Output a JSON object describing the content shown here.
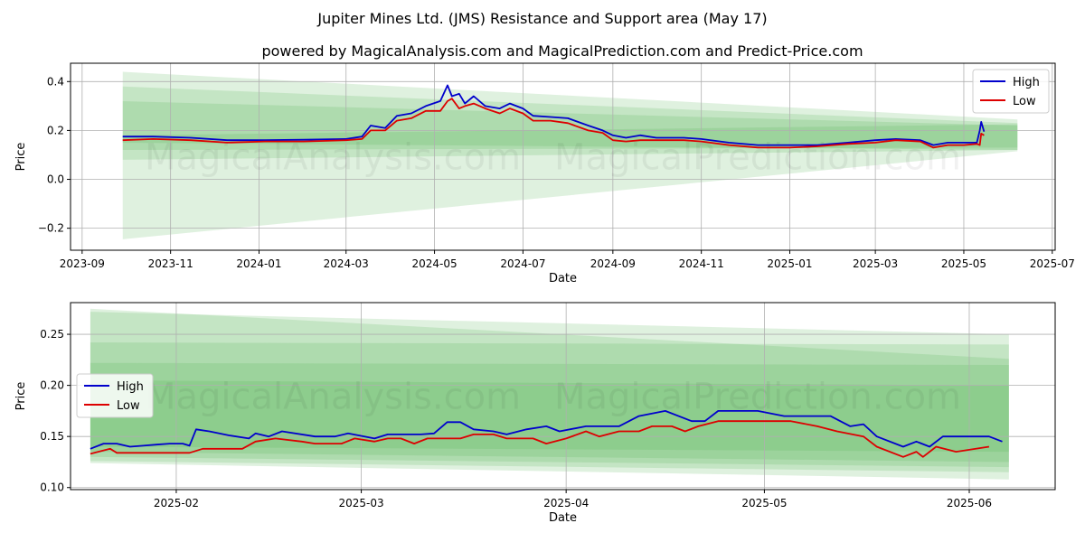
{
  "title": "Jupiter Mines Ltd. (JMS) Resistance and Support area (May 17)",
  "subtitle": "powered by MagicalAnalysis.com and MagicalPrediction.com and Predict-Price.com",
  "watermarks": [
    "MagicalAnalysis.com",
    "MagicalPrediction.com"
  ],
  "colors": {
    "high": "#0000cc",
    "low": "#dd0000",
    "band": "#4caf50",
    "grid": "#b0b0b0"
  },
  "chart_data": [
    {
      "type": "line",
      "xlabel": "Date",
      "ylabel": "Price",
      "xlim": [
        "2023-08-24",
        "2025-07-03"
      ],
      "ylim": [
        -0.29,
        0.475
      ],
      "grid": true,
      "legend": "top-right",
      "x_ticks": [
        "2023-09",
        "2023-11",
        "2024-01",
        "2024-03",
        "2024-05",
        "2024-07",
        "2024-09",
        "2024-11",
        "2025-01",
        "2025-03",
        "2025-05",
        "2025-07"
      ],
      "y_ticks": [
        "0.4",
        "0.2",
        "0.0",
        "−0.2"
      ],
      "y_tick_values": [
        0.4,
        0.2,
        0.0,
        -0.2
      ],
      "bands": [
        {
          "x0": "2023-09-29",
          "x1": "2025-06-07",
          "top": [
            0.44,
            0.245
          ],
          "bottom": [
            -0.245,
            0.115
          ]
        },
        {
          "x0": "2023-09-29",
          "x1": "2025-06-07",
          "top": [
            0.38,
            0.23
          ],
          "bottom": [
            0.08,
            0.12
          ]
        },
        {
          "x0": "2023-09-29",
          "x1": "2025-06-07",
          "top": [
            0.32,
            0.22
          ],
          "bottom": [
            0.12,
            0.13
          ]
        },
        {
          "x0": "2023-09-29",
          "x1": "2025-06-07",
          "top": [
            0.18,
            0.225
          ],
          "bottom": [
            0.15,
            0.12
          ]
        }
      ],
      "series": [
        {
          "name": "High",
          "color": "#0000cc",
          "points": [
            [
              "2023-09-29",
              0.175
            ],
            [
              "2023-10-20",
              0.175
            ],
            [
              "2023-11-15",
              0.17
            ],
            [
              "2023-12-10",
              0.16
            ],
            [
              "2024-01-05",
              0.16
            ],
            [
              "2024-02-01",
              0.162
            ],
            [
              "2024-03-01",
              0.165
            ],
            [
              "2024-03-12",
              0.175
            ],
            [
              "2024-03-18",
              0.22
            ],
            [
              "2024-03-28",
              0.21
            ],
            [
              "2024-04-05",
              0.26
            ],
            [
              "2024-04-15",
              0.27
            ],
            [
              "2024-04-25",
              0.3
            ],
            [
              "2024-05-05",
              0.32
            ],
            [
              "2024-05-10",
              0.385
            ],
            [
              "2024-05-13",
              0.34
            ],
            [
              "2024-05-18",
              0.35
            ],
            [
              "2024-05-22",
              0.31
            ],
            [
              "2024-05-28",
              0.34
            ],
            [
              "2024-06-05",
              0.3
            ],
            [
              "2024-06-15",
              0.29
            ],
            [
              "2024-06-22",
              0.31
            ],
            [
              "2024-07-01",
              0.29
            ],
            [
              "2024-07-08",
              0.26
            ],
            [
              "2024-07-20",
              0.255
            ],
            [
              "2024-08-01",
              0.25
            ],
            [
              "2024-08-15",
              0.22
            ],
            [
              "2024-08-25",
              0.2
            ],
            [
              "2024-09-01",
              0.18
            ],
            [
              "2024-09-10",
              0.17
            ],
            [
              "2024-09-20",
              0.18
            ],
            [
              "2024-10-01",
              0.17
            ],
            [
              "2024-10-20",
              0.17
            ],
            [
              "2024-11-01",
              0.165
            ],
            [
              "2024-11-20",
              0.15
            ],
            [
              "2024-12-10",
              0.14
            ],
            [
              "2025-01-01",
              0.14
            ],
            [
              "2025-01-20",
              0.14
            ],
            [
              "2025-02-10",
              0.15
            ],
            [
              "2025-03-01",
              0.16
            ],
            [
              "2025-03-15",
              0.165
            ],
            [
              "2025-04-01",
              0.16
            ],
            [
              "2025-04-10",
              0.14
            ],
            [
              "2025-04-20",
              0.15
            ],
            [
              "2025-05-01",
              0.15
            ],
            [
              "2025-05-10",
              0.15
            ],
            [
              "2025-05-12",
              0.2
            ],
            [
              "2025-05-13",
              0.235
            ],
            [
              "2025-05-15",
              0.195
            ]
          ]
        },
        {
          "name": "Low",
          "color": "#dd0000",
          "points": [
            [
              "2023-09-29",
              0.16
            ],
            [
              "2023-10-20",
              0.165
            ],
            [
              "2023-11-15",
              0.16
            ],
            [
              "2023-12-10",
              0.15
            ],
            [
              "2024-01-05",
              0.155
            ],
            [
              "2024-02-01",
              0.155
            ],
            [
              "2024-03-01",
              0.16
            ],
            [
              "2024-03-12",
              0.165
            ],
            [
              "2024-03-18",
              0.2
            ],
            [
              "2024-03-28",
              0.2
            ],
            [
              "2024-04-05",
              0.24
            ],
            [
              "2024-04-15",
              0.25
            ],
            [
              "2024-04-25",
              0.28
            ],
            [
              "2024-05-05",
              0.28
            ],
            [
              "2024-05-10",
              0.32
            ],
            [
              "2024-05-13",
              0.33
            ],
            [
              "2024-05-18",
              0.29
            ],
            [
              "2024-05-22",
              0.3
            ],
            [
              "2024-05-28",
              0.31
            ],
            [
              "2024-06-05",
              0.29
            ],
            [
              "2024-06-15",
              0.27
            ],
            [
              "2024-06-22",
              0.29
            ],
            [
              "2024-07-01",
              0.27
            ],
            [
              "2024-07-08",
              0.24
            ],
            [
              "2024-07-20",
              0.24
            ],
            [
              "2024-08-01",
              0.23
            ],
            [
              "2024-08-15",
              0.2
            ],
            [
              "2024-08-25",
              0.19
            ],
            [
              "2024-09-01",
              0.16
            ],
            [
              "2024-09-10",
              0.155
            ],
            [
              "2024-09-20",
              0.16
            ],
            [
              "2024-10-01",
              0.16
            ],
            [
              "2024-10-20",
              0.16
            ],
            [
              "2024-11-01",
              0.155
            ],
            [
              "2024-11-20",
              0.14
            ],
            [
              "2024-12-10",
              0.13
            ],
            [
              "2025-01-01",
              0.13
            ],
            [
              "2025-01-20",
              0.135
            ],
            [
              "2025-02-10",
              0.145
            ],
            [
              "2025-03-01",
              0.15
            ],
            [
              "2025-03-15",
              0.16
            ],
            [
              "2025-04-01",
              0.155
            ],
            [
              "2025-04-10",
              0.13
            ],
            [
              "2025-04-20",
              0.14
            ],
            [
              "2025-05-01",
              0.14
            ],
            [
              "2025-05-10",
              0.145
            ],
            [
              "2025-05-12",
              0.14
            ],
            [
              "2025-05-13",
              0.187
            ],
            [
              "2025-05-15",
              0.18
            ]
          ]
        }
      ]
    },
    {
      "type": "line",
      "xlabel": "Date",
      "ylabel": "Price",
      "xlim": [
        "2025-01-16",
        "2025-06-14"
      ],
      "ylim": [
        0.098,
        0.281
      ],
      "grid": true,
      "legend": "center-left",
      "x_ticks": [
        "2025-02",
        "2025-03",
        "2025-04",
        "2025-05",
        "2025-06"
      ],
      "y_ticks": [
        "0.10",
        "0.15",
        "0.20",
        "0.25"
      ],
      "y_tick_values": [
        0.1,
        0.15,
        0.2,
        0.25
      ],
      "bands": [
        {
          "x0": "2025-01-19",
          "x1": "2025-06-07",
          "top": [
            0.275,
            0.226
          ],
          "bottom": [
            0.124,
            0.108
          ]
        },
        {
          "x0": "2025-01-19",
          "x1": "2025-06-07",
          "top": [
            0.272,
            0.25
          ],
          "bottom": [
            0.126,
            0.115
          ]
        },
        {
          "x0": "2025-01-19",
          "x1": "2025-06-07",
          "top": [
            0.242,
            0.24
          ],
          "bottom": [
            0.13,
            0.12
          ]
        },
        {
          "x0": "2025-01-19",
          "x1": "2025-06-07",
          "top": [
            0.222,
            0.22
          ],
          "bottom": [
            0.135,
            0.125
          ]
        },
        {
          "x0": "2025-01-19",
          "x1": "2025-06-07",
          "top": [
            0.205,
            0.2
          ],
          "bottom": [
            0.14,
            0.135
          ]
        }
      ],
      "series": [
        {
          "name": "High",
          "color": "#0000cc",
          "points": [
            [
              "2025-01-19",
              0.138
            ],
            [
              "2025-01-21",
              0.143
            ],
            [
              "2025-01-23",
              0.143
            ],
            [
              "2025-01-25",
              0.14
            ],
            [
              "2025-01-27",
              0.141
            ],
            [
              "2025-01-29",
              0.142
            ],
            [
              "2025-01-31",
              0.143
            ],
            [
              "2025-02-02",
              0.143
            ],
            [
              "2025-02-03",
              0.141
            ],
            [
              "2025-02-04",
              0.157
            ],
            [
              "2025-02-06",
              0.155
            ],
            [
              "2025-02-09",
              0.151
            ],
            [
              "2025-02-12",
              0.148
            ],
            [
              "2025-02-13",
              0.153
            ],
            [
              "2025-02-15",
              0.15
            ],
            [
              "2025-02-17",
              0.155
            ],
            [
              "2025-02-22",
              0.15
            ],
            [
              "2025-02-25",
              0.15
            ],
            [
              "2025-02-27",
              0.153
            ],
            [
              "2025-03-03",
              0.148
            ],
            [
              "2025-03-05",
              0.152
            ],
            [
              "2025-03-10",
              0.152
            ],
            [
              "2025-03-12",
              0.153
            ],
            [
              "2025-03-14",
              0.164
            ],
            [
              "2025-03-16",
              0.164
            ],
            [
              "2025-03-18",
              0.157
            ],
            [
              "2025-03-21",
              0.155
            ],
            [
              "2025-03-23",
              0.152
            ],
            [
              "2025-03-26",
              0.157
            ],
            [
              "2025-03-29",
              0.16
            ],
            [
              "2025-03-31",
              0.155
            ],
            [
              "2025-04-04",
              0.16
            ],
            [
              "2025-04-09",
              0.16
            ],
            [
              "2025-04-12",
              0.17
            ],
            [
              "2025-04-16",
              0.175
            ],
            [
              "2025-04-20",
              0.165
            ],
            [
              "2025-04-22",
              0.165
            ],
            [
              "2025-04-24",
              0.175
            ],
            [
              "2025-04-30",
              0.175
            ],
            [
              "2025-05-04",
              0.17
            ],
            [
              "2025-05-11",
              0.17
            ],
            [
              "2025-05-14",
              0.16
            ],
            [
              "2025-05-16",
              0.162
            ],
            [
              "2025-05-18",
              0.15
            ],
            [
              "2025-05-22",
              0.14
            ],
            [
              "2025-05-24",
              0.145
            ],
            [
              "2025-05-26",
              0.14
            ],
            [
              "2025-05-28",
              0.15
            ],
            [
              "2025-06-04",
              0.15
            ],
            [
              "2025-06-06",
              0.145
            ]
          ]
        },
        {
          "name": "Low",
          "color": "#dd0000",
          "points": [
            [
              "2025-01-19",
              0.133
            ],
            [
              "2025-01-22",
              0.138
            ],
            [
              "2025-01-23",
              0.134
            ],
            [
              "2025-01-25",
              0.134
            ],
            [
              "2025-01-28",
              0.134
            ],
            [
              "2025-01-31",
              0.134
            ],
            [
              "2025-02-03",
              0.134
            ],
            [
              "2025-02-05",
              0.138
            ],
            [
              "2025-02-08",
              0.138
            ],
            [
              "2025-02-11",
              0.138
            ],
            [
              "2025-02-13",
              0.145
            ],
            [
              "2025-02-16",
              0.148
            ],
            [
              "2025-02-20",
              0.145
            ],
            [
              "2025-02-22",
              0.143
            ],
            [
              "2025-02-26",
              0.143
            ],
            [
              "2025-02-28",
              0.148
            ],
            [
              "2025-03-03",
              0.145
            ],
            [
              "2025-03-05",
              0.148
            ],
            [
              "2025-03-07",
              0.148
            ],
            [
              "2025-03-09",
              0.143
            ],
            [
              "2025-03-11",
              0.148
            ],
            [
              "2025-03-14",
              0.148
            ],
            [
              "2025-03-16",
              0.148
            ],
            [
              "2025-03-18",
              0.152
            ],
            [
              "2025-03-21",
              0.152
            ],
            [
              "2025-03-23",
              0.148
            ],
            [
              "2025-03-27",
              0.148
            ],
            [
              "2025-03-29",
              0.143
            ],
            [
              "2025-04-01",
              0.148
            ],
            [
              "2025-04-04",
              0.155
            ],
            [
              "2025-04-06",
              0.15
            ],
            [
              "2025-04-09",
              0.155
            ],
            [
              "2025-04-12",
              0.155
            ],
            [
              "2025-04-14",
              0.16
            ],
            [
              "2025-04-17",
              0.16
            ],
            [
              "2025-04-19",
              0.155
            ],
            [
              "2025-04-21",
              0.16
            ],
            [
              "2025-04-24",
              0.165
            ],
            [
              "2025-05-01",
              0.165
            ],
            [
              "2025-05-05",
              0.165
            ],
            [
              "2025-05-09",
              0.16
            ],
            [
              "2025-05-12",
              0.155
            ],
            [
              "2025-05-16",
              0.15
            ],
            [
              "2025-05-18",
              0.14
            ],
            [
              "2025-05-22",
              0.13
            ],
            [
              "2025-05-24",
              0.135
            ],
            [
              "2025-05-25",
              0.13
            ],
            [
              "2025-05-27",
              0.14
            ],
            [
              "2025-05-30",
              0.135
            ],
            [
              "2025-06-04",
              0.14
            ]
          ]
        }
      ]
    }
  ],
  "legend": {
    "high_label": "High",
    "low_label": "Low"
  }
}
